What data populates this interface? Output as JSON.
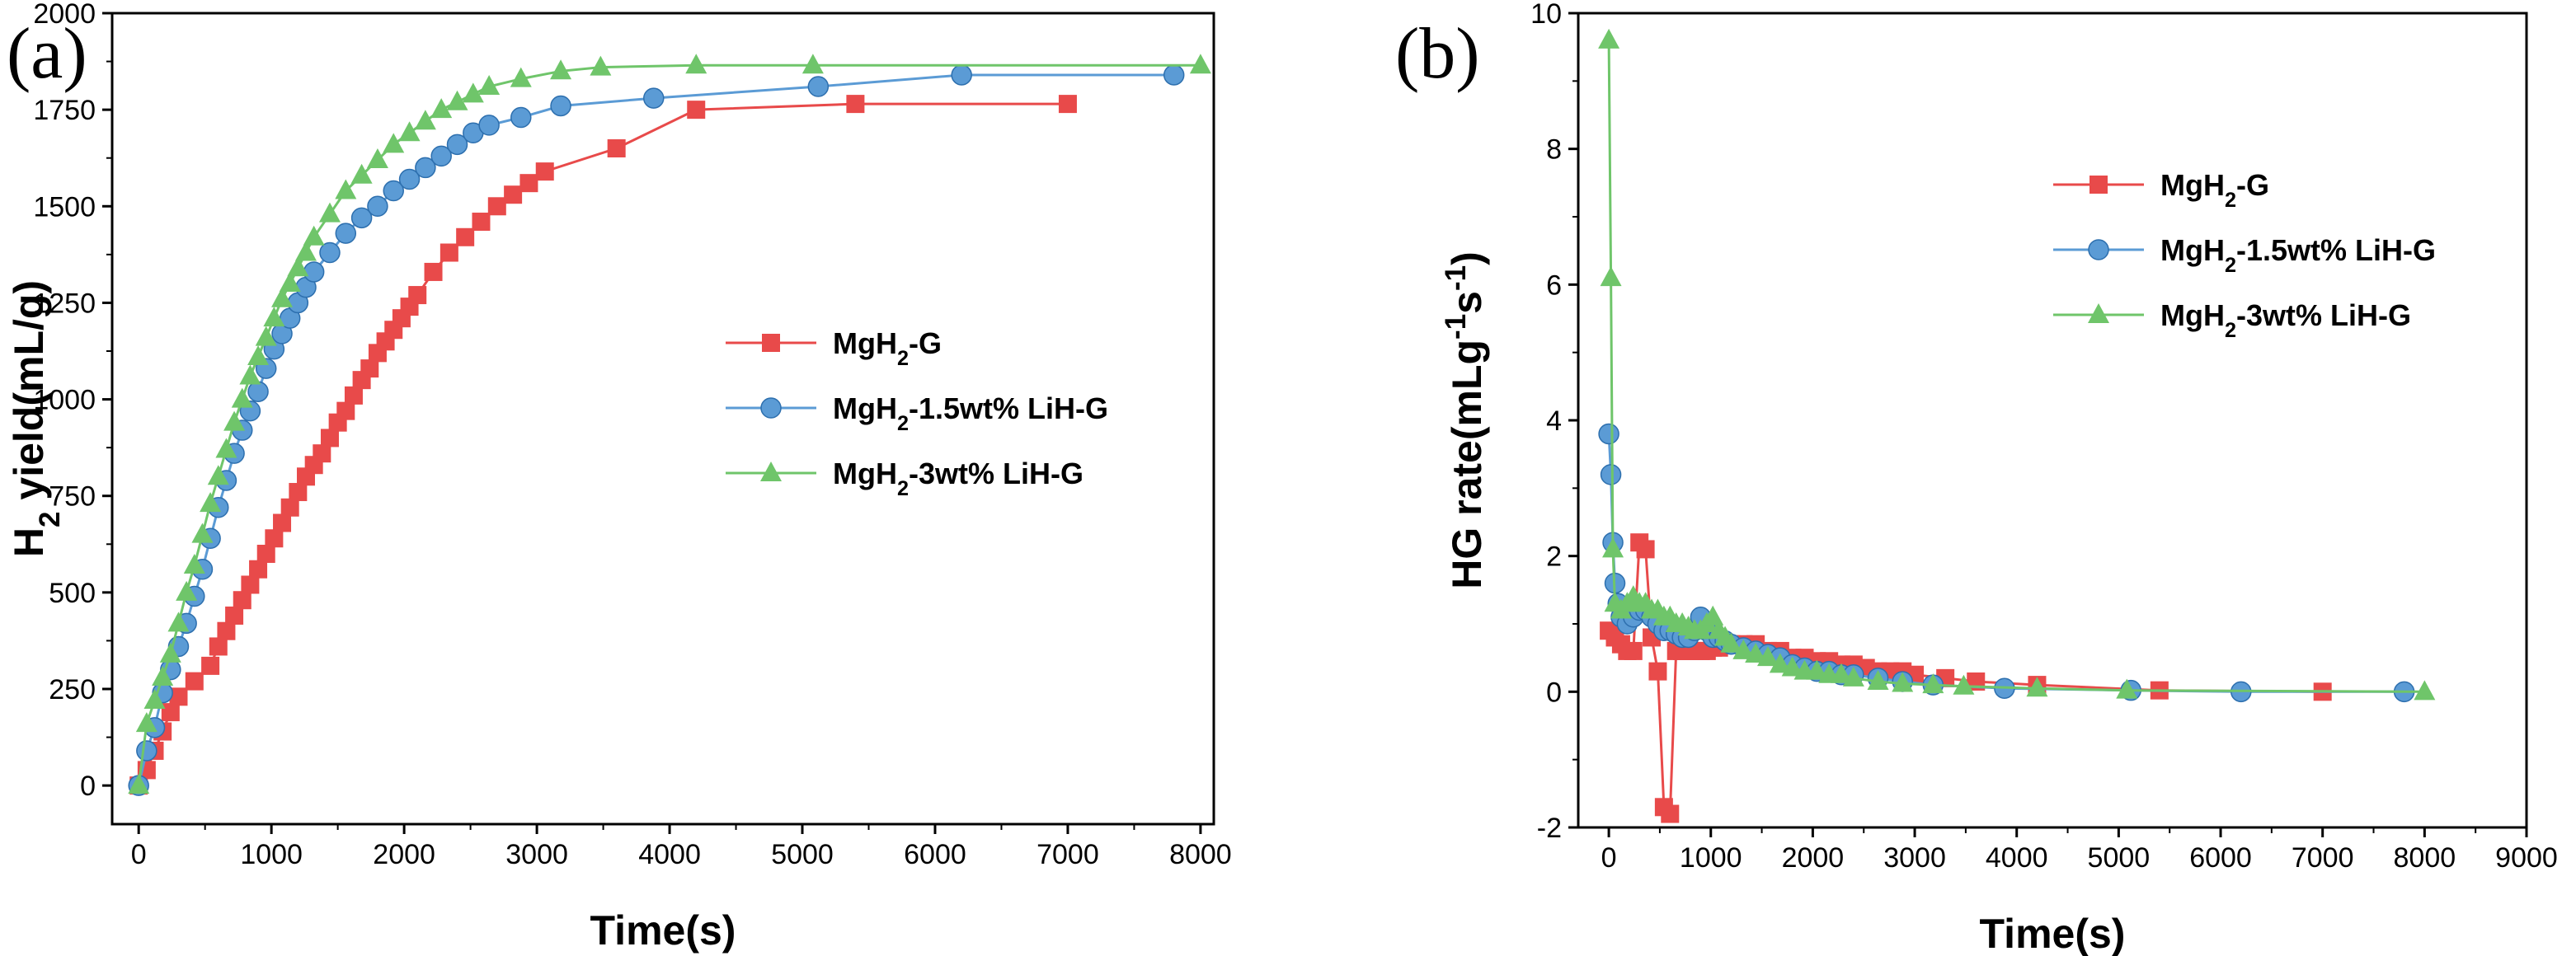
{
  "colors": {
    "red": "#e84a4a",
    "blue": "#5b9bd5",
    "green": "#6fc56a"
  },
  "chart_data": [
    {
      "type": "line",
      "panel_label": "(a)",
      "xlabel": "Time(s)",
      "ylabel_parts": [
        "H",
        "2",
        " yield(mL/g)"
      ],
      "xlim": [
        -200,
        8100
      ],
      "ylim": [
        -100,
        2000
      ],
      "xticks": [
        0,
        1000,
        2000,
        3000,
        4000,
        5000,
        6000,
        7000,
        8000
      ],
      "yticks": [
        0,
        250,
        500,
        750,
        1000,
        1250,
        1500,
        1750,
        2000
      ],
      "legend_position": "center-right",
      "series": [
        {
          "name": "MgH2-G",
          "name_parts": [
            "MgH",
            "2",
            "-G"
          ],
          "color": "red",
          "marker": "square",
          "x": [
            0,
            60,
            120,
            180,
            240,
            300,
            420,
            540,
            600,
            660,
            720,
            780,
            840,
            900,
            960,
            1020,
            1080,
            1140,
            1200,
            1260,
            1320,
            1380,
            1440,
            1500,
            1560,
            1620,
            1680,
            1740,
            1800,
            1860,
            1920,
            1980,
            2040,
            2100,
            2220,
            2340,
            2460,
            2580,
            2700,
            2820,
            2940,
            3060,
            3600,
            4200,
            5400,
            7000
          ],
          "y": [
            0,
            40,
            90,
            140,
            190,
            230,
            270,
            310,
            360,
            400,
            440,
            480,
            520,
            560,
            600,
            640,
            680,
            720,
            760,
            800,
            830,
            860,
            900,
            940,
            970,
            1010,
            1050,
            1080,
            1120,
            1150,
            1180,
            1210,
            1240,
            1270,
            1330,
            1380,
            1420,
            1460,
            1500,
            1530,
            1560,
            1590,
            1650,
            1750,
            1765,
            1765
          ]
        },
        {
          "name": "MgH2-1.5wt% LiH-G",
          "name_parts": [
            "MgH",
            "2",
            "-1.5wt% LiH-G"
          ],
          "color": "blue",
          "marker": "circle",
          "x": [
            0,
            60,
            120,
            180,
            240,
            300,
            360,
            420,
            480,
            540,
            600,
            660,
            720,
            780,
            840,
            900,
            960,
            1020,
            1080,
            1140,
            1200,
            1260,
            1320,
            1440,
            1560,
            1680,
            1800,
            1920,
            2040,
            2160,
            2280,
            2400,
            2520,
            2640,
            2880,
            3180,
            3880,
            5120,
            6200,
            7800
          ],
          "y": [
            0,
            90,
            150,
            240,
            300,
            360,
            420,
            490,
            560,
            640,
            720,
            790,
            860,
            920,
            970,
            1020,
            1080,
            1130,
            1170,
            1210,
            1250,
            1290,
            1330,
            1380,
            1430,
            1470,
            1500,
            1540,
            1570,
            1600,
            1630,
            1660,
            1690,
            1710,
            1730,
            1760,
            1780,
            1810,
            1840,
            1840
          ]
        },
        {
          "name": "MgH2-3wt% LiH-G",
          "name_parts": [
            "MgH",
            "2",
            "-3wt% LiH-G"
          ],
          "color": "green",
          "marker": "triangle",
          "x": [
            0,
            60,
            120,
            180,
            240,
            300,
            360,
            420,
            480,
            540,
            600,
            660,
            720,
            780,
            840,
            900,
            960,
            1020,
            1080,
            1140,
            1200,
            1260,
            1320,
            1440,
            1560,
            1680,
            1800,
            1920,
            2040,
            2160,
            2280,
            2400,
            2520,
            2640,
            2880,
            3180,
            3480,
            4200,
            5080,
            8000
          ],
          "y": [
            0,
            160,
            220,
            280,
            340,
            420,
            500,
            570,
            650,
            730,
            800,
            870,
            940,
            1000,
            1060,
            1110,
            1160,
            1210,
            1260,
            1300,
            1340,
            1380,
            1420,
            1480,
            1540,
            1580,
            1620,
            1660,
            1690,
            1720,
            1750,
            1770,
            1790,
            1810,
            1830,
            1850,
            1860,
            1865,
            1865,
            1865
          ]
        }
      ]
    },
    {
      "type": "line",
      "panel_label": "(b)",
      "xlabel": "Time(s)",
      "ylabel_parts": [
        "HG rate(mLg",
        "-1",
        "s",
        "-1",
        ")"
      ],
      "xlim": [
        -300,
        9000
      ],
      "ylim": [
        -2,
        10
      ],
      "xticks": [
        0,
        1000,
        2000,
        3000,
        4000,
        5000,
        6000,
        7000,
        8000,
        9000
      ],
      "yticks": [
        -2,
        0,
        2,
        4,
        6,
        8,
        10
      ],
      "legend_position": "top-right",
      "series": [
        {
          "name": "MgH2-G",
          "name_parts": [
            "MgH",
            "2",
            "-G"
          ],
          "color": "red",
          "marker": "square",
          "x": [
            0,
            60,
            120,
            180,
            240,
            300,
            360,
            420,
            480,
            540,
            600,
            660,
            720,
            780,
            840,
            900,
            960,
            1020,
            1080,
            1200,
            1320,
            1440,
            1560,
            1680,
            1800,
            1920,
            2040,
            2160,
            2280,
            2400,
            2520,
            2640,
            2760,
            2880,
            3000,
            3300,
            3600,
            4200,
            5400,
            7000
          ],
          "y": [
            0.9,
            0.8,
            0.7,
            0.6,
            0.6,
            2.2,
            2.1,
            0.8,
            0.3,
            -1.7,
            -1.8,
            0.6,
            0.6,
            0.6,
            0.6,
            0.6,
            0.6,
            0.65,
            0.65,
            0.7,
            0.7,
            0.7,
            0.6,
            0.6,
            0.5,
            0.5,
            0.45,
            0.45,
            0.4,
            0.4,
            0.35,
            0.3,
            0.3,
            0.3,
            0.25,
            0.2,
            0.15,
            0.1,
            0.02,
            0.0
          ]
        },
        {
          "name": "MgH2-1.5wt% LiH-G",
          "name_parts": [
            "MgH",
            "2",
            "-1.5wt% LiH-G"
          ],
          "color": "blue",
          "marker": "circle",
          "x": [
            0,
            20,
            40,
            60,
            90,
            120,
            180,
            240,
            300,
            360,
            420,
            480,
            540,
            600,
            660,
            720,
            780,
            840,
            900,
            960,
            1020,
            1080,
            1140,
            1200,
            1320,
            1440,
            1560,
            1680,
            1800,
            1920,
            2040,
            2160,
            2280,
            2400,
            2640,
            2880,
            3180,
            3880,
            5120,
            6200,
            7800
          ],
          "y": [
            3.8,
            3.2,
            2.2,
            1.6,
            1.3,
            1.1,
            1.0,
            1.1,
            1.2,
            1.2,
            1.1,
            1.0,
            0.9,
            0.9,
            0.85,
            0.8,
            0.8,
            0.9,
            1.1,
            0.9,
            0.8,
            0.8,
            0.75,
            0.7,
            0.65,
            0.6,
            0.55,
            0.5,
            0.4,
            0.35,
            0.3,
            0.3,
            0.25,
            0.25,
            0.2,
            0.15,
            0.1,
            0.05,
            0.02,
            0.0,
            0.0
          ]
        },
        {
          "name": "MgH2-3wt% LiH-G",
          "name_parts": [
            "MgH",
            "2",
            "-3wt% LiH-G"
          ],
          "color": "green",
          "marker": "triangle",
          "x": [
            0,
            20,
            40,
            60,
            120,
            180,
            240,
            300,
            360,
            420,
            480,
            540,
            600,
            660,
            720,
            780,
            840,
            900,
            960,
            1020,
            1080,
            1140,
            1200,
            1320,
            1440,
            1560,
            1680,
            1800,
            1920,
            2040,
            2160,
            2280,
            2400,
            2640,
            2880,
            3180,
            3480,
            4200,
            5080,
            8000
          ],
          "y": [
            9.6,
            6.1,
            2.1,
            1.3,
            1.2,
            1.3,
            1.4,
            1.3,
            1.3,
            1.2,
            1.2,
            1.1,
            1.1,
            1.0,
            1.0,
            0.95,
            0.9,
            0.9,
            1.0,
            1.1,
            0.9,
            0.8,
            0.7,
            0.6,
            0.55,
            0.5,
            0.4,
            0.35,
            0.3,
            0.3,
            0.25,
            0.25,
            0.2,
            0.15,
            0.12,
            0.1,
            0.08,
            0.05,
            0.02,
            0.0
          ]
        }
      ]
    }
  ]
}
